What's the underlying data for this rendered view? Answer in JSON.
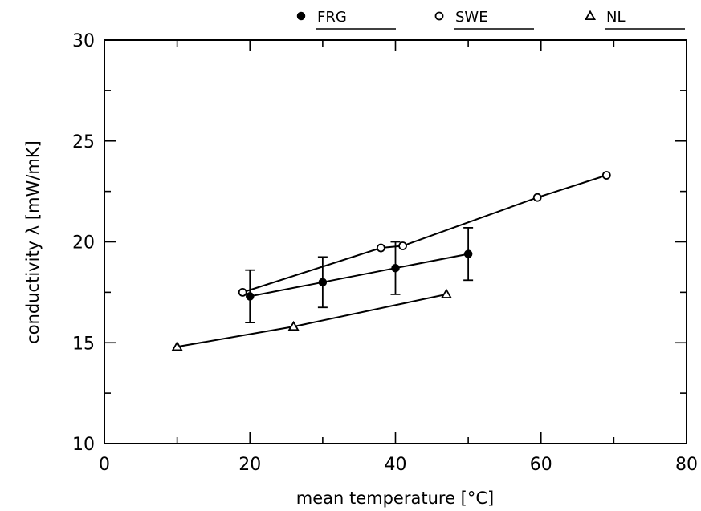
{
  "chart_data": {
    "type": "line",
    "xlabel": "mean temperature [°C]",
    "ylabel": "conductivity λ [mW/mK]",
    "xlim": [
      0,
      80
    ],
    "ylim": [
      10,
      30
    ],
    "x_ticks": [
      0,
      20,
      40,
      60,
      80
    ],
    "y_ticks": [
      10,
      15,
      20,
      25,
      30
    ],
    "grid": false,
    "legend_position": "top",
    "series": [
      {
        "name": "FRG",
        "marker": "filled-circle",
        "color": "#000000",
        "x": [
          20,
          30,
          40,
          50
        ],
        "y": [
          17.3,
          18.0,
          18.7,
          19.4
        ],
        "error": [
          1.3,
          1.25,
          1.3,
          1.3
        ]
      },
      {
        "name": "SWE",
        "marker": "open-circle",
        "color": "#000000",
        "x": [
          19,
          38,
          41,
          59.5,
          69
        ],
        "y": [
          17.5,
          19.7,
          19.8,
          22.2,
          23.3
        ]
      },
      {
        "name": "NL",
        "marker": "triangle",
        "color": "#000000",
        "x": [
          10,
          26,
          47
        ],
        "y": [
          14.8,
          15.8,
          17.4
        ]
      }
    ]
  }
}
